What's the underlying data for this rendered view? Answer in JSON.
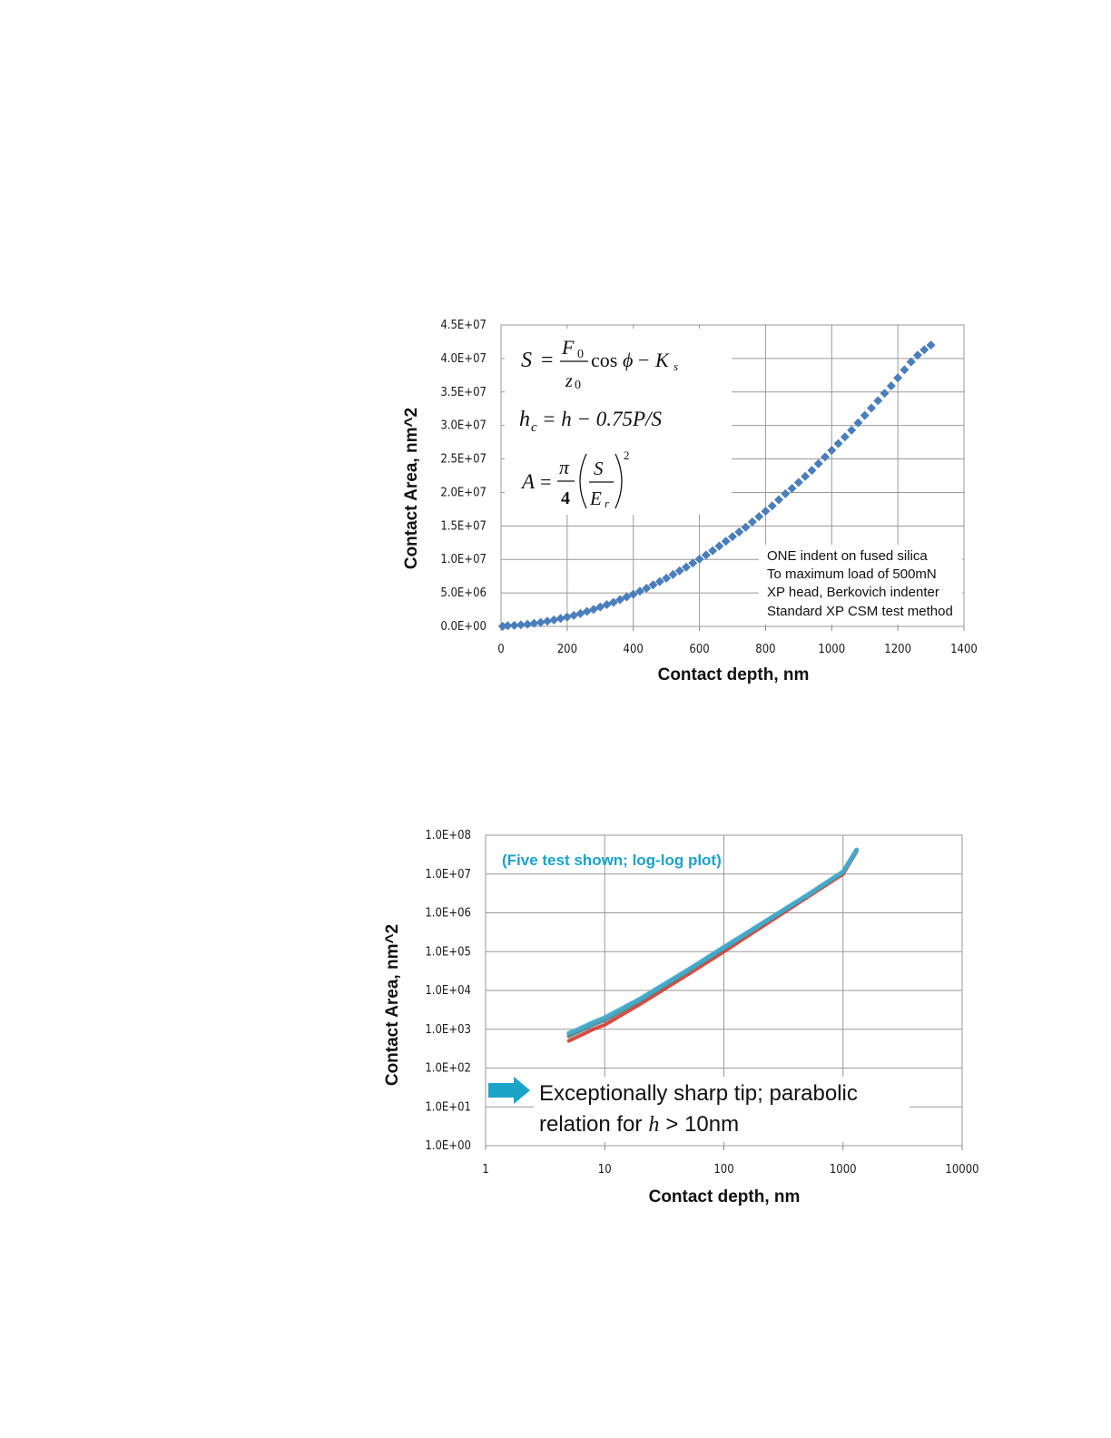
{
  "chart_data": [
    {
      "type": "scatter",
      "title": "",
      "xlabel": "Contact depth, nm",
      "ylabel": "Contact Area, nm^2",
      "xlim": [
        0,
        1400
      ],
      "ylim": [
        0,
        45000000
      ],
      "x_ticks": [
        "0",
        "200",
        "400",
        "600",
        "800",
        "1000",
        "1200",
        "1400"
      ],
      "y_ticks": [
        "0.0E+00",
        "5.0E+06",
        "1.0E+07",
        "1.5E+07",
        "2.0E+07",
        "2.5E+07",
        "3.0E+07",
        "3.5E+07",
        "4.0E+07",
        "4.5E+07"
      ],
      "grid": true,
      "marker_color": "#4a7ebb",
      "series": [
        {
          "x": [
            5,
            20,
            40,
            60,
            80,
            100,
            120,
            140,
            160,
            180,
            200,
            220,
            240,
            260,
            280,
            300,
            320,
            340,
            360,
            380,
            400,
            420,
            440,
            460,
            480,
            500,
            520,
            540,
            560,
            580,
            600,
            620,
            640,
            660,
            680,
            700,
            720,
            740,
            760,
            780,
            800,
            820,
            840,
            860,
            880,
            900,
            920,
            940,
            960,
            980,
            1000,
            1020,
            1040,
            1060,
            1080,
            1100,
            1120,
            1140,
            1160,
            1180,
            1200,
            1220,
            1240,
            1260,
            1280,
            1300
          ],
          "y": [
            20000,
            100000,
            150000,
            230000,
            330000,
            450000,
            600000,
            780000,
            960000,
            1180000,
            1400000,
            1650000,
            1920000,
            2230000,
            2540000,
            2900000,
            3250000,
            3600000,
            4000000,
            4400000,
            4800000,
            5250000,
            5700000,
            6200000,
            6700000,
            7200000,
            7750000,
            8300000,
            8850000,
            9450000,
            10050000,
            10650000,
            11300000,
            12000000,
            12700000,
            13400000,
            14100000,
            14800000,
            15600000,
            16400000,
            17200000,
            18000000,
            18900000,
            19800000,
            20600000,
            21500000,
            22400000,
            23300000,
            24300000,
            25300000,
            26300000,
            27300000,
            28300000,
            29300000,
            30400000,
            31500000,
            32600000,
            33700000,
            34800000,
            35900000,
            37100000,
            38300000,
            39500000,
            40500000,
            41300000,
            42000000
          ]
        }
      ],
      "annotations": {
        "eq1": {
          "lhs": "S",
          "eq": "=",
          "num": "F",
          "num_sub": "0",
          "den": "z",
          "den_sub": "0",
          "rest": "cos",
          "phi": "ϕ",
          "minus": "−",
          "k": "K",
          "k_sub": "s"
        },
        "eq2": {
          "h": "h",
          "h_sub": "c",
          "rest": "= h − 0.75P/S"
        },
        "eq3": {
          "lhs": "A",
          "eq": "=",
          "pi": "π",
          "four": "4",
          "s": "S",
          "e": "E",
          "e_sub": "r",
          "exp": "2"
        },
        "note_lines": [
          "ONE indent on fused silica",
          "To maximum load of 500mN",
          "XP head, Berkovich indenter",
          "Standard XP CSM test method"
        ]
      }
    },
    {
      "type": "line",
      "title": "",
      "xlabel": "Contact depth, nm",
      "ylabel": "Contact Area, nm^2",
      "scale": "log-log",
      "xlim": [
        1,
        10000
      ],
      "ylim": [
        1,
        100000000
      ],
      "x_ticks": [
        "1",
        "10",
        "100",
        "1000",
        "10000"
      ],
      "y_ticks": [
        "1.0E+00",
        "1.0E+01",
        "1.0E+02",
        "1.0E+03",
        "1.0E+04",
        "1.0E+05",
        "1.0E+06",
        "1.0E+07",
        "1.0E+08"
      ],
      "grid": true,
      "subtitle": "(Five test shown; log-log plot)",
      "annotation_lines": [
        "Exceptionally  sharp tip; parabolic",
        "relation for",
        "h",
        "> 10nm"
      ],
      "arrow_color": "#1ba3c8",
      "series": [
        {
          "color": "#d03a2a",
          "x": [
            5,
            6,
            8,
            10,
            20,
            50,
            100,
            200,
            500,
            1000,
            1300
          ],
          "y": [
            500,
            650,
            1000,
            1300,
            4500,
            26000,
            100000,
            400000,
            2500000,
            10000000,
            38000000
          ]
        },
        {
          "color": "#4a7ebb",
          "x": [
            5,
            6,
            8,
            10,
            20,
            50,
            100,
            200,
            500,
            1000,
            1300
          ],
          "y": [
            650,
            850,
            1300,
            1700,
            5500,
            31000,
            120000,
            460000,
            2700000,
            11000000,
            40000000
          ]
        },
        {
          "color": "#6a9a3a",
          "x": [
            5,
            6,
            8,
            10,
            20,
            50,
            100,
            200,
            500,
            1000,
            1300
          ],
          "y": [
            700,
            900,
            1400,
            1800,
            5800,
            32000,
            125000,
            470000,
            2750000,
            11200000,
            40500000
          ]
        },
        {
          "color": "#7a5aa8",
          "x": [
            5,
            6,
            8,
            10,
            20,
            50,
            100,
            200,
            500,
            1000,
            1300
          ],
          "y": [
            750,
            950,
            1450,
            1900,
            6000,
            33000,
            128000,
            480000,
            2800000,
            11300000,
            41000000
          ]
        },
        {
          "color": "#3fb0cc",
          "x": [
            5,
            6,
            8,
            10,
            20,
            50,
            100,
            200,
            500,
            1000,
            1300
          ],
          "y": [
            800,
            1000,
            1500,
            2000,
            6200,
            34000,
            130000,
            490000,
            2850000,
            11500000,
            42000000
          ]
        }
      ]
    }
  ]
}
